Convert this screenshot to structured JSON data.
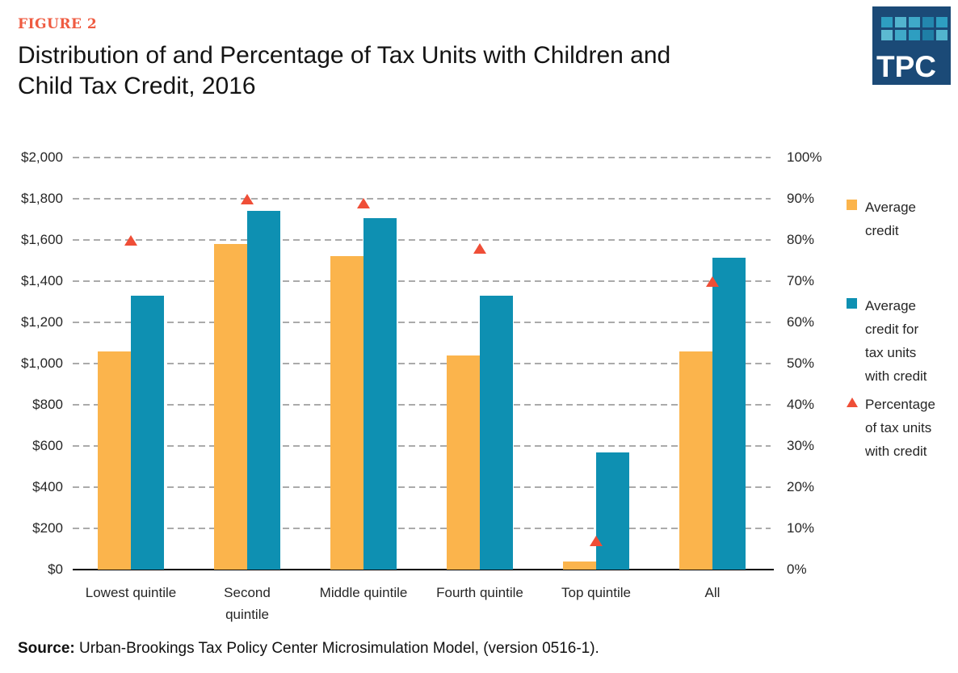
{
  "header": {
    "figure_label": "FIGURE 2",
    "title_line1": "Distribution of and Percentage of Tax Units with Children and",
    "title_line2": "Child Tax Credit, 2016",
    "logo_text": "TPC",
    "logo_background": "#1B4A77",
    "logo_squares": [
      "#2E9EC1",
      "#52B4CE",
      "#3FA9C8",
      "#2387AE",
      "#2E9EC1",
      "#5CBAD2",
      "#3FA9C8",
      "#2E9EC1",
      "#1F7FA6",
      "#52B4CE"
    ]
  },
  "chart_data": {
    "type": "bar",
    "title": "Distribution of and Percentage of Tax Units with Children and Child Tax Credit, 2016",
    "categories": [
      "Lowest quintile",
      "Second quintile",
      "Middle quintile",
      "Fourth quintile",
      "Top quintile",
      "All"
    ],
    "category_display": [
      "Lowest quintile",
      "Second\nquintile",
      "Middle quintile",
      "Fourth quintile",
      "Top quintile",
      "All"
    ],
    "series": [
      {
        "name": "Average credit",
        "type": "bar",
        "axis": "left",
        "color": "#FBB44C",
        "values": [
          1060,
          1580,
          1520,
          1040,
          40,
          1060
        ]
      },
      {
        "name": "Average credit for tax units with credit",
        "type": "bar",
        "axis": "left",
        "color": "#0E90B2",
        "values": [
          1330,
          1740,
          1705,
          1330,
          570,
          1515
        ]
      },
      {
        "name": "Percentage of tax units with credit",
        "type": "scatter",
        "marker": "triangle",
        "axis": "right",
        "color": "#EF4E37",
        "values": [
          80,
          90,
          89,
          78,
          7,
          70
        ]
      }
    ],
    "left_axis": {
      "min": 0,
      "max": 2000,
      "tick_labels": [
        "$2,000",
        "$1,800",
        "$1,600",
        "$1,400",
        "$1,200",
        "$1,000",
        "$800",
        "$600",
        "$400",
        "$200",
        "$0"
      ]
    },
    "right_axis": {
      "min": 0,
      "max": 100,
      "tick_labels": [
        "100%",
        "90%",
        "80%",
        "70%",
        "60%",
        "50%",
        "40%",
        "30%",
        "20%",
        "10%",
        "0%"
      ]
    },
    "grid": "dashed-horizontal",
    "legend_position": "right"
  },
  "legend": [
    {
      "label": "Average\ncredit",
      "marker": "square",
      "color": "#FBB44C"
    },
    {
      "label": "Average\ncredit for\ntax units\nwith credit",
      "marker": "square",
      "color": "#0E90B2"
    },
    {
      "label": "Percentage\nof tax units\nwith credit",
      "marker": "triangle",
      "color": "#EF4E37"
    }
  ],
  "source": {
    "label": "Source:",
    "text": " Urban-Brookings Tax Policy Center Microsimulation Model, (version 0516-1)."
  }
}
